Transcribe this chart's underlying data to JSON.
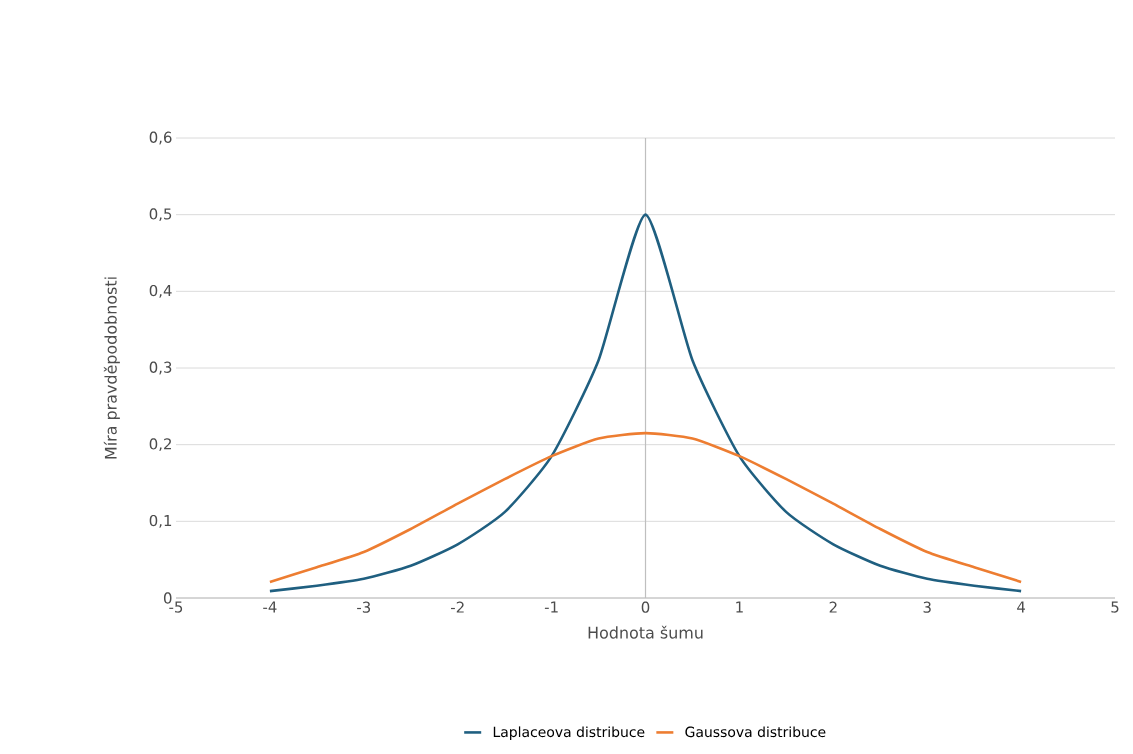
{
  "chart_data": {
    "type": "line",
    "xlabel": "Hodnota šumu",
    "ylabel": "Míra pravděpodobnosti",
    "xlim": [
      -5,
      5
    ],
    "xticks": [
      -5,
      -4,
      -3,
      -2,
      -1,
      0,
      1,
      2,
      3,
      4,
      5
    ],
    "ylim": [
      0,
      0.6
    ],
    "yticks": [
      0,
      {
        "value": 0.1,
        "label": "0,1"
      },
      {
        "value": 0.2,
        "label": "0,2"
      },
      {
        "value": 0.3,
        "label": "0,3"
      },
      {
        "value": 0.4,
        "label": "0,4"
      },
      {
        "value": 0.5,
        "label": "0,5"
      },
      {
        "value": 0.6,
        "label": "0,6"
      }
    ],
    "x": [
      -4,
      -3.5,
      -3,
      -2.5,
      -2,
      -1.5,
      -1,
      -0.5,
      0,
      0.5,
      1,
      1.5,
      2,
      2.5,
      3,
      3.5,
      4
    ],
    "series": [
      {
        "name": "Laplaceova distribuce",
        "color": "#1f5f80",
        "values": [
          0.009,
          0.016,
          0.025,
          0.042,
          0.07,
          0.112,
          0.185,
          0.31,
          0.5,
          0.31,
          0.185,
          0.112,
          0.07,
          0.042,
          0.025,
          0.016,
          0.009
        ]
      },
      {
        "name": "Gaussova distribuce",
        "color": "#ed7d31",
        "values": [
          0.021,
          0.04,
          0.06,
          0.09,
          0.123,
          0.155,
          0.185,
          0.208,
          0.215,
          0.208,
          0.185,
          0.155,
          0.123,
          0.09,
          0.06,
          0.04,
          0.021
        ]
      }
    ],
    "ref_lines": [
      {
        "axis": "x",
        "value": 0,
        "color": "#bfbfbf"
      }
    ],
    "grid": "y",
    "legend": "bottom",
    "marker": "none",
    "line_style": "solid"
  }
}
